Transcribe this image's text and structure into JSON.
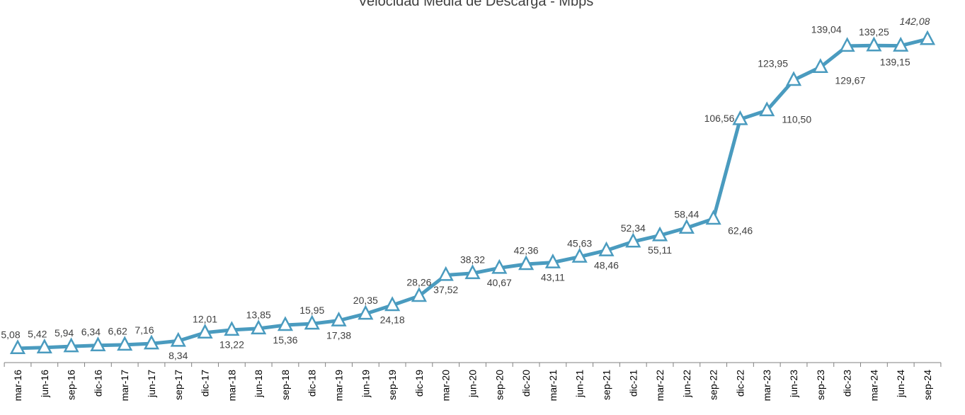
{
  "chart_data": {
    "type": "line",
    "title": "Velocidad Media de Descarga - Mbps",
    "categories": [
      "mar-16",
      "jun-16",
      "sep-16",
      "dic-16",
      "mar-17",
      "jun-17",
      "sep-17",
      "dic-17",
      "mar-18",
      "jun-18",
      "sep-18",
      "dic-18",
      "mar-19",
      "jun-19",
      "sep-19",
      "dic-19",
      "mar-20",
      "jun-20",
      "sep-20",
      "dic-20",
      "mar-21",
      "jun-21",
      "sep-21",
      "dic-21",
      "mar-22",
      "jun-22",
      "sep-22",
      "dic-22",
      "mar-23",
      "jun-23",
      "sep-23",
      "dic-23",
      "mar-24",
      "jun-24",
      "sep-24"
    ],
    "series": [
      {
        "name": "Velocidad Media de Descarga",
        "color": "#4a9bbf",
        "values": [
          5.08,
          5.42,
          5.94,
          6.34,
          6.62,
          7.16,
          8.34,
          12.01,
          13.22,
          13.85,
          15.36,
          15.95,
          17.38,
          20.35,
          24.18,
          28.26,
          37.52,
          38.32,
          40.67,
          42.36,
          43.11,
          45.63,
          48.46,
          52.34,
          55.11,
          58.44,
          62.46,
          106.56,
          110.5,
          123.95,
          129.67,
          139.04,
          139.25,
          139.15,
          142.08
        ],
        "value_labels": [
          "5,08",
          "5,42",
          "5,94",
          "6,34",
          "6,62",
          "7,16",
          "8,34",
          "12,01",
          "13,22",
          "13,85",
          "15,36",
          "15,95",
          "17,38",
          "20,35",
          "24,18",
          "28,26",
          "37,52",
          "38,32",
          "40,67",
          "42,36",
          "43,11",
          "45,63",
          "48,46",
          "52,34",
          "55,11",
          "58,44",
          "62,46",
          "106,56",
          "110,50",
          "123,95",
          "129,67",
          "139,04",
          "139,25",
          "139,15",
          "142,08"
        ]
      }
    ],
    "ylim": [
      0,
      150
    ]
  }
}
